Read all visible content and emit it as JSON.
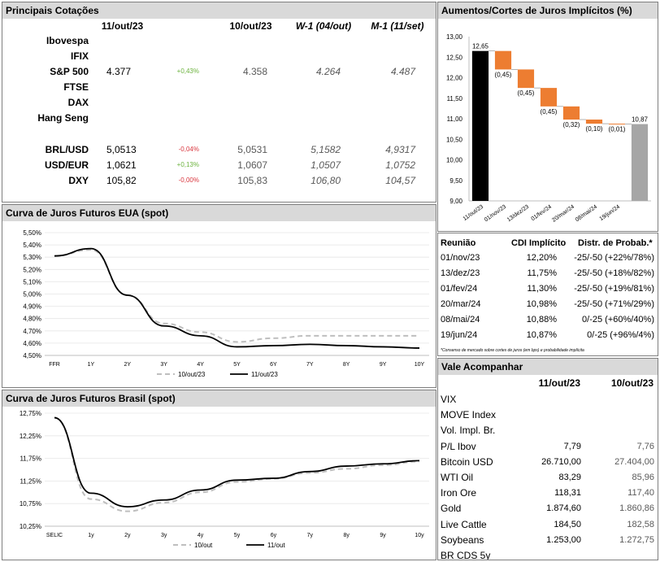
{
  "cotacoes": {
    "title": "Principais Cotações",
    "headers": [
      "11/out/23",
      "10/out/23",
      "W-1 (04/out)",
      "M-1 (11/set)"
    ],
    "rows": [
      {
        "name": "Ibovespa",
        "v1": "",
        "chg": "",
        "chg_color": "",
        "v2": "",
        "w1": "",
        "m1": ""
      },
      {
        "name": "IFIX",
        "v1": "",
        "chg": "",
        "chg_color": "",
        "v2": "",
        "w1": "",
        "m1": ""
      },
      {
        "name": "S&P 500",
        "v1": "4.377",
        "chg": "+0,43%",
        "chg_color": "green",
        "v2": "4.358",
        "w1": "4.264",
        "m1": "4.487"
      },
      {
        "name": "FTSE",
        "v1": "",
        "chg": "",
        "chg_color": "",
        "v2": "",
        "w1": "",
        "m1": ""
      },
      {
        "name": "DAX",
        "v1": "",
        "chg": "",
        "chg_color": "",
        "v2": "",
        "w1": "",
        "m1": ""
      },
      {
        "name": "Hang Seng",
        "v1": "",
        "chg": "",
        "chg_color": "",
        "v2": "",
        "w1": "",
        "m1": ""
      },
      {
        "name": "BRL/USD",
        "v1": "5,0513",
        "chg": "-0,04%",
        "chg_color": "red",
        "v2": "5,0531",
        "w1": "5,1582",
        "m1": "4,9317"
      },
      {
        "name": "USD/EUR",
        "v1": "1,0621",
        "chg": "+0,13%",
        "chg_color": "green",
        "v2": "1,0607",
        "w1": "1,0507",
        "m1": "1,0752"
      },
      {
        "name": "DXY",
        "v1": "105,82",
        "chg": "-0,00%",
        "chg_color": "red",
        "v2": "105,83",
        "w1": "106,80",
        "m1": "104,57"
      }
    ]
  },
  "juros_implicitos": {
    "title": "Aumentos/Cortes de Juros Implícitos (%)",
    "chart_data": {
      "type": "bar",
      "subtype": "waterfall",
      "categories": [
        "11/out/23",
        "01/nov/23",
        "13/dez/23",
        "01/fev/24",
        "20/mar/24",
        "08/mai/24",
        "19/jun/24",
        ""
      ],
      "start": 12.65,
      "deltas": [
        -0.45,
        -0.45,
        -0.45,
        -0.32,
        -0.1,
        -0.01
      ],
      "end": 10.87,
      "labels": [
        "12,65",
        "(0,45)",
        "(0,45)",
        "(0,45)",
        "(0,32)",
        "(0,10)",
        "(0,01)",
        "10,87"
      ],
      "ylim": [
        9.0,
        13.0
      ],
      "yticks": [
        "13,00",
        "12,50",
        "12,00",
        "11,50",
        "11,00",
        "10,50",
        "10,00",
        "9,50",
        "9,00"
      ],
      "colors": {
        "start": "#000000",
        "delta": "#ed7d31",
        "end": "#a6a6a6"
      }
    }
  },
  "reunioes": {
    "headers": [
      "Reunião",
      "CDI Implícito",
      "Distr. de Probab.*"
    ],
    "rows": [
      {
        "date": "01/nov/23",
        "cdi": "12,20%",
        "prob": "-25/-50 (+22%/78%)"
      },
      {
        "date": "13/dez/23",
        "cdi": "11,75%",
        "prob": "-25/-50 (+18%/82%)"
      },
      {
        "date": "01/fev/24",
        "cdi": "11,30%",
        "prob": "-25/-50 (+19%/81%)"
      },
      {
        "date": "20/mar/24",
        "cdi": "10,98%",
        "prob": "-25/-50 (+71%/29%)"
      },
      {
        "date": "08/mai/24",
        "cdi": "10,88%",
        "prob": "0/-25 (+60%/40%)"
      },
      {
        "date": "19/jun/24",
        "cdi": "10,87%",
        "prob": "0/-25 (+96%/4%)"
      }
    ],
    "footnote": "*Consenso de mercado sobre cortes de juros (em bps) e probabilidade implícita"
  },
  "curva_eua": {
    "title": "Curva de Juros Futuros EUA (spot)",
    "chart_data": {
      "type": "line",
      "x": [
        "FFR",
        "1Y",
        "2Y",
        "3Y",
        "4Y",
        "5Y",
        "6Y",
        "7Y",
        "8Y",
        "9Y",
        "10Y"
      ],
      "series": [
        {
          "name": "10/out/23",
          "values": [
            5.31,
            5.36,
            4.99,
            4.76,
            4.69,
            4.61,
            4.64,
            4.66,
            4.66,
            4.66,
            4.66
          ]
        },
        {
          "name": "11/out/23",
          "values": [
            5.31,
            5.37,
            4.99,
            4.74,
            4.66,
            4.57,
            4.58,
            4.59,
            4.58,
            4.57,
            4.56
          ]
        }
      ],
      "ylim": [
        4.5,
        5.5
      ],
      "yticks": [
        "5,50%",
        "5,40%",
        "5,30%",
        "5,20%",
        "5,10%",
        "5,00%",
        "4,90%",
        "4,80%",
        "4,70%",
        "4,60%",
        "4,50%"
      ],
      "legend": "bottom"
    }
  },
  "curva_brasil": {
    "title": "Curva de Juros Futuros Brasil (spot)",
    "chart_data": {
      "type": "line",
      "x": [
        "SELIC",
        "1y",
        "2y",
        "3y",
        "4y",
        "5y",
        "6y",
        "7y",
        "8y",
        "9y",
        "10y"
      ],
      "series": [
        {
          "name": "10/out",
          "values": [
            12.65,
            10.85,
            10.58,
            10.77,
            11.0,
            11.23,
            11.3,
            11.43,
            11.52,
            11.6,
            11.68
          ]
        },
        {
          "name": "11/out",
          "values": [
            12.65,
            10.98,
            10.68,
            10.83,
            11.05,
            11.27,
            11.31,
            11.46,
            11.58,
            11.63,
            11.7
          ]
        }
      ],
      "ylim": [
        10.25,
        12.75
      ],
      "yticks": [
        "12,75%",
        "12,25%",
        "11,75%",
        "11,25%",
        "10,75%",
        "10,25%"
      ],
      "legend": "bottom"
    }
  },
  "vale": {
    "title": "Vale Acompanhar",
    "headers": [
      "11/out/23",
      "10/out/23"
    ],
    "rows": [
      {
        "name": "VIX",
        "v1": "",
        "v2": ""
      },
      {
        "name": "MOVE Index",
        "v1": "",
        "v2": ""
      },
      {
        "name": "Vol. Impl. Br.",
        "v1": "",
        "v2": ""
      },
      {
        "name": "P/L Ibov",
        "v1": "7,79",
        "v2": "7,76"
      },
      {
        "name": "Bitcoin USD",
        "v1": "26.710,00",
        "v2": "27.404,00"
      },
      {
        "name": "WTI Oil",
        "v1": "83,29",
        "v2": "85,96"
      },
      {
        "name": "Iron Ore",
        "v1": "118,31",
        "v2": "117,40"
      },
      {
        "name": "Gold",
        "v1": "1.874,60",
        "v2": "1.860,86"
      },
      {
        "name": "Live Cattle",
        "v1": "184,50",
        "v2": "182,58"
      },
      {
        "name": "Soybeans",
        "v1": "1.253,00",
        "v2": "1.272,75"
      },
      {
        "name": "BR CDS 5y",
        "v1": "",
        "v2": ""
      }
    ]
  }
}
